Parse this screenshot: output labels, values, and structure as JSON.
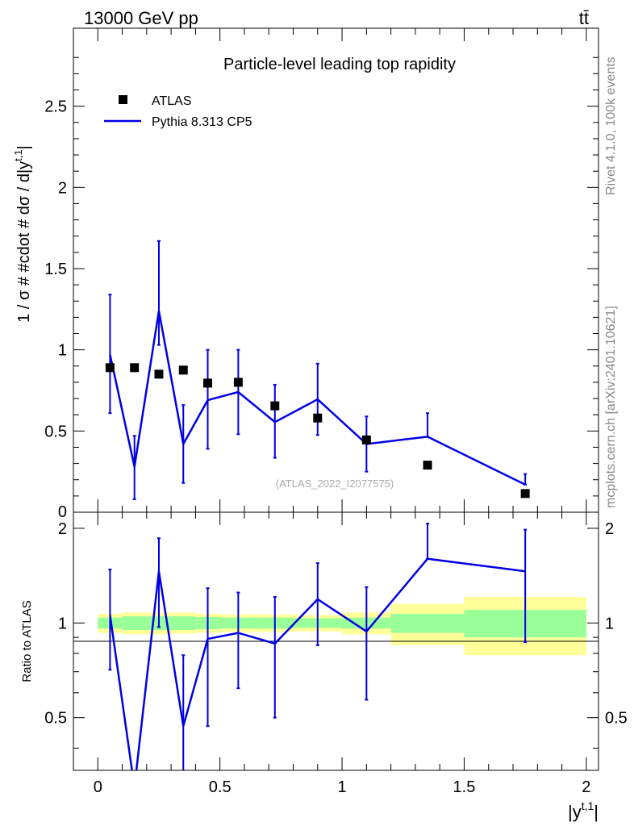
{
  "header": {
    "energy_label": "13000 GeV pp",
    "process_label": "tt̄"
  },
  "side_text": {
    "rivet": "Rivet 4.1.0,  100k events",
    "site": "mcplots.cern.ch [arXiv:2401.10621]"
  },
  "chart_data": [
    {
      "type": "scatter",
      "panel": "main",
      "title": "Particle-level leading top rapidity",
      "xlabel": "|y^{t,1}|",
      "ylabel": "1 / σ # #cdot # dσ / d|y^{t,1}|",
      "watermark": "(ATLAS_2022_I2077575)",
      "xlim": [
        -0.1,
        2.05
      ],
      "ylim": [
        0,
        2.98
      ],
      "y_ticks": [
        "0.5",
        "1",
        "1.5",
        "2",
        "2.5"
      ],
      "y_ticks_partial": [
        "0"
      ],
      "legend": {
        "position": "top-left",
        "entries": [
          "ATLAS",
          "Pythia 8.313 CP5"
        ]
      },
      "series": [
        {
          "name": "ATLAS",
          "style": "marker",
          "x": [
            0.05,
            0.15,
            0.25,
            0.35,
            0.45,
            0.575,
            0.725,
            0.9,
            1.1,
            1.35,
            1.75
          ],
          "y": [
            0.89,
            0.89,
            0.85,
            0.875,
            0.795,
            0.8,
            0.655,
            0.58,
            0.445,
            0.29,
            0.115
          ]
        },
        {
          "name": "Pythia 8.313 CP5",
          "style": "line",
          "color": "#0000e6",
          "x": [
            0.05,
            0.15,
            0.25,
            0.35,
            0.45,
            0.575,
            0.725,
            0.9,
            1.1,
            1.35,
            1.75
          ],
          "y": [
            0.97,
            0.28,
            1.24,
            0.42,
            0.69,
            0.74,
            0.555,
            0.695,
            0.42,
            0.465,
            0.17
          ],
          "err_low": [
            0.36,
            0.2,
            0.21,
            0.24,
            0.3,
            0.26,
            0.22,
            0.22,
            0.17,
            0.0,
            0.0
          ],
          "err_high": [
            0.37,
            0.19,
            0.43,
            0.24,
            0.31,
            0.26,
            0.23,
            0.22,
            0.17,
            0.145,
            0.065
          ]
        }
      ]
    },
    {
      "type": "line",
      "panel": "ratio",
      "ylabel": "Ratio to ATLAS",
      "xlabel": "|y^{t,1}|",
      "xlim": [
        -0.1,
        2.05
      ],
      "ylim": [
        0.34,
        2.25
      ],
      "x_ticks": [
        "0",
        "0.5",
        "1",
        "1.5",
        "2"
      ],
      "y_ticks": [
        "0.5",
        "1",
        "2"
      ],
      "bands": {
        "edges": [
          0.0,
          0.1,
          0.2,
          0.3,
          0.4,
          0.5,
          0.65,
          0.8,
          1.0,
          1.2,
          1.5,
          2.0
        ],
        "green_low": [
          0.96,
          0.95,
          0.95,
          0.95,
          0.955,
          0.96,
          0.96,
          0.965,
          0.96,
          0.93,
          0.9
        ],
        "green_high": [
          1.04,
          1.05,
          1.05,
          1.05,
          1.045,
          1.04,
          1.04,
          1.035,
          1.04,
          1.07,
          1.1
        ],
        "yellow_low": [
          0.93,
          0.92,
          0.92,
          0.925,
          0.93,
          0.935,
          0.935,
          0.94,
          0.92,
          0.85,
          0.79
        ],
        "yellow_high": [
          1.07,
          1.08,
          1.08,
          1.08,
          1.07,
          1.065,
          1.065,
          1.06,
          1.08,
          1.15,
          1.21
        ]
      },
      "series": [
        {
          "name": "Pythia 8.313 CP5 / ATLAS",
          "color": "#0000e6",
          "x": [
            0.05,
            0.15,
            0.25,
            0.35,
            0.45,
            0.575,
            0.725,
            0.9,
            1.1,
            1.35,
            1.75
          ],
          "y": [
            1.06,
            0.3,
            1.46,
            0.47,
            0.89,
            0.93,
            0.86,
            1.19,
            0.94,
            1.6,
            1.46
          ],
          "err_low": [
            0.35,
            0.0,
            0.49,
            0.34,
            0.42,
            0.31,
            0.36,
            0.34,
            0.37,
            0.0,
            0.59
          ],
          "err_high": [
            0.42,
            0.0,
            0.4,
            0.32,
            0.4,
            0.32,
            0.35,
            0.36,
            0.36,
            0.47,
            0.52
          ]
        }
      ]
    }
  ]
}
